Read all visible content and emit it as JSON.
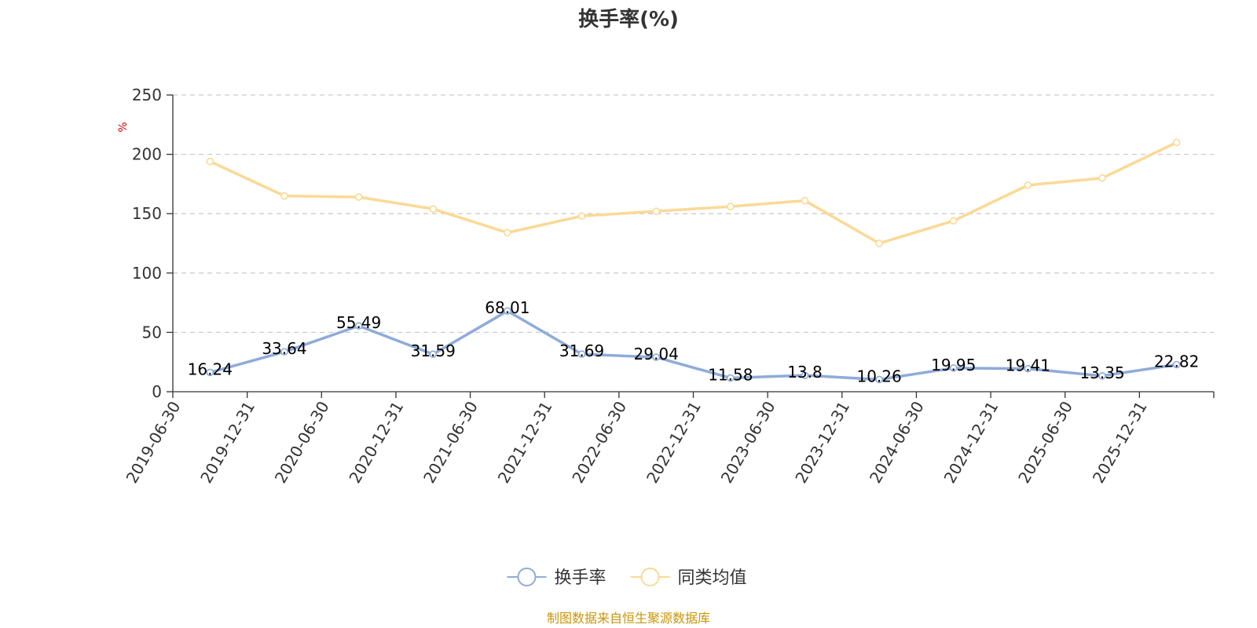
{
  "chart_data": {
    "type": "line",
    "title": "换手率(%)",
    "ylabel": "%",
    "xlabel": "",
    "ylim": [
      0,
      250
    ],
    "yticks": [
      0,
      50,
      100,
      150,
      200,
      250
    ],
    "grid": true,
    "legend_position": "bottom",
    "categories": [
      "2019-06-30",
      "2019-12-31",
      "2020-06-30",
      "2020-12-31",
      "2021-06-30",
      "2021-12-31",
      "2022-06-30",
      "2022-12-31",
      "2023-06-30",
      "2023-12-31",
      "2024-06-30",
      "2024-12-31",
      "2025-06-30",
      "2025-12-31"
    ],
    "series": [
      {
        "name": "换手率",
        "color": "#8eabda",
        "values": [
          16.24,
          33.64,
          55.49,
          31.59,
          68.01,
          31.69,
          29.04,
          11.58,
          13.8,
          10.26,
          19.95,
          19.41,
          13.35,
          22.82
        ],
        "data_labels": [
          "16.24",
          "33.64",
          "55.49",
          "31.59",
          "68.01",
          "31.69",
          "29.04",
          "11.58",
          "13.8",
          "10.26",
          "19.95",
          "19.41",
          "13.35",
          "22.82"
        ]
      },
      {
        "name": "同类均值",
        "color": "#fbd995",
        "values": [
          194,
          165,
          164,
          154,
          134,
          148,
          152,
          156,
          161,
          125,
          144,
          174,
          180,
          210
        ]
      }
    ]
  },
  "footer": {
    "source": "制图数据来自恒生聚源数据库"
  }
}
